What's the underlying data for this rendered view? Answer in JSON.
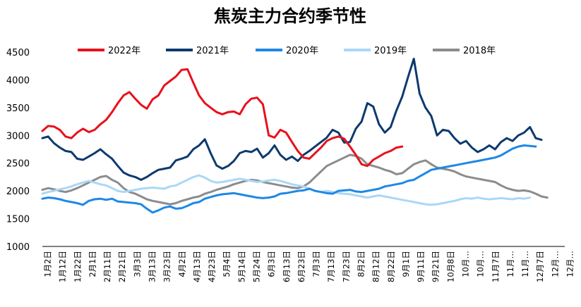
{
  "chart_data": {
    "type": "line",
    "title": "焦炭主力合约季节性",
    "xlabel": "",
    "ylabel": "",
    "ylim": [
      1000,
      4500
    ],
    "yticks": [
      1000,
      1500,
      2000,
      2500,
      3000,
      3500,
      4000,
      4500
    ],
    "legend_position": "top",
    "grid": false,
    "x_tick_labels": [
      "1月2日",
      "1月12日",
      "1月22日",
      "2月1日",
      "2月11日",
      "2月21日",
      "3月3日",
      "3月13日",
      "3月23日",
      "4月2日",
      "4月13日",
      "4月23日",
      "5月4日",
      "5月14日",
      "5月24日",
      "6月3日",
      "6月13日",
      "6月23日",
      "7月3日",
      "7月13日",
      "7月23日",
      "8月2日",
      "8月12日",
      "8月22日",
      "9月1日",
      "9月11日",
      "9月21日",
      "10月8日",
      "10月…",
      "10月…",
      "11月7日",
      "11月…",
      "11月…",
      "12月7日",
      "12月…",
      "12月…"
    ],
    "series": [
      {
        "name": "2022年",
        "color": "#e8111c",
        "values": [
          3080,
          3170,
          3160,
          3100,
          2980,
          2950,
          3050,
          3120,
          3060,
          3100,
          3200,
          3280,
          3420,
          3580,
          3720,
          3780,
          3660,
          3550,
          3480,
          3650,
          3720,
          3900,
          3980,
          4060,
          4180,
          4190,
          3950,
          3720,
          3580,
          3500,
          3420,
          3380,
          3420,
          3430,
          3380,
          3560,
          3660,
          3680,
          3560,
          3000,
          2960,
          3100,
          3050,
          2880,
          2720,
          2600,
          2580,
          2680,
          2780,
          2900,
          2950,
          2980,
          2940,
          2800,
          2650,
          2480,
          2450,
          2560,
          2620,
          2680,
          2720,
          2780,
          2800,
          null,
          null,
          null,
          null,
          null,
          null,
          null,
          null,
          null,
          null,
          null,
          null,
          null,
          null,
          null,
          null,
          null,
          null,
          null,
          null,
          null,
          null,
          null,
          null,
          null,
          null,
          null,
          null
        ]
      },
      {
        "name": "2021年",
        "color": "#0d3a6e",
        "values": [
          2950,
          2980,
          2860,
          2780,
          2720,
          2700,
          2580,
          2560,
          2620,
          2680,
          2750,
          2660,
          2580,
          2450,
          2330,
          2280,
          2250,
          2200,
          2250,
          2320,
          2380,
          2400,
          2420,
          2550,
          2580,
          2620,
          2750,
          2820,
          2930,
          2680,
          2460,
          2400,
          2450,
          2540,
          2680,
          2720,
          2700,
          2760,
          2600,
          2680,
          2820,
          2650,
          2560,
          2620,
          2540,
          2650,
          2720,
          2800,
          2880,
          2960,
          3100,
          3050,
          2870,
          2880,
          3120,
          3250,
          3580,
          3520,
          3200,
          3050,
          3150,
          3450,
          3700,
          4050,
          4380,
          3750,
          3500,
          3350,
          3000,
          3100,
          3080,
          2950,
          2850,
          2900,
          2780,
          2700,
          2750,
          2820,
          2750,
          2880,
          2950,
          2900,
          3000,
          3050,
          3150,
          2950,
          2920,
          null,
          null,
          null,
          null
        ]
      },
      {
        "name": "2020年",
        "color": "#1e88e5",
        "values": [
          1860,
          1880,
          1870,
          1850,
          1820,
          1800,
          1780,
          1750,
          1820,
          1850,
          1860,
          1840,
          1860,
          1810,
          1800,
          1790,
          1780,
          1760,
          1680,
          1610,
          1650,
          1700,
          1720,
          1680,
          1690,
          1730,
          1780,
          1800,
          1860,
          1890,
          1920,
          1940,
          1950,
          1960,
          1940,
          1920,
          1900,
          1880,
          1870,
          1880,
          1900,
          1950,
          1960,
          1980,
          2000,
          2010,
          2040,
          2000,
          1980,
          1960,
          1950,
          2000,
          2010,
          2020,
          1990,
          1980,
          2000,
          2020,
          2040,
          2080,
          2100,
          2120,
          2140,
          2180,
          2200,
          2260,
          2320,
          2380,
          2400,
          2420,
          2440,
          2460,
          2480,
          2500,
          2520,
          2540,
          2560,
          2580,
          2600,
          2640,
          2700,
          2760,
          2800,
          2820,
          2810,
          2800,
          null,
          null,
          null,
          null,
          null
        ]
      },
      {
        "name": "2019年",
        "color": "#a9d8f7",
        "values": [
          1950,
          1980,
          2000,
          2030,
          2050,
          2080,
          2120,
          2150,
          2180,
          2150,
          2120,
          2100,
          2050,
          2000,
          1980,
          2000,
          2020,
          2040,
          2050,
          2060,
          2050,
          2040,
          2080,
          2100,
          2150,
          2200,
          2250,
          2280,
          2240,
          2180,
          2150,
          2160,
          2180,
          2200,
          2220,
          2200,
          2180,
          2160,
          2170,
          2190,
          2200,
          2180,
          2150,
          2120,
          2100,
          2080,
          2040,
          2000,
          1980,
          2000,
          1980,
          1960,
          1950,
          1940,
          1920,
          1900,
          1880,
          1900,
          1920,
          1900,
          1880,
          1860,
          1840,
          1820,
          1800,
          1780,
          1760,
          1750,
          1760,
          1780,
          1800,
          1820,
          1850,
          1870,
          1860,
          1880,
          1860,
          1850,
          1860,
          1870,
          1860,
          1850,
          1870,
          1860,
          1880,
          null,
          null,
          null,
          null,
          null,
          null
        ]
      },
      {
        "name": "2018年",
        "color": "#8c8c8c",
        "values": [
          2020,
          2050,
          2030,
          2000,
          1980,
          2010,
          2050,
          2100,
          2150,
          2200,
          2250,
          2270,
          2200,
          2150,
          2050,
          1980,
          1950,
          1900,
          1850,
          1820,
          1800,
          1780,
          1760,
          1780,
          1820,
          1850,
          1880,
          1900,
          1950,
          1980,
          2020,
          2050,
          2080,
          2120,
          2150,
          2180,
          2200,
          2190,
          2160,
          2140,
          2120,
          2100,
          2080,
          2060,
          2050,
          2080,
          2150,
          2250,
          2350,
          2450,
          2500,
          2550,
          2600,
          2650,
          2630,
          2580,
          2480,
          2450,
          2420,
          2380,
          2350,
          2300,
          2320,
          2400,
          2480,
          2520,
          2550,
          2480,
          2420,
          2400,
          2380,
          2350,
          2300,
          2260,
          2240,
          2220,
          2200,
          2180,
          2160,
          2100,
          2050,
          2020,
          2000,
          2010,
          1990,
          1950,
          1900,
          1880,
          null,
          null,
          null
        ]
      }
    ]
  }
}
